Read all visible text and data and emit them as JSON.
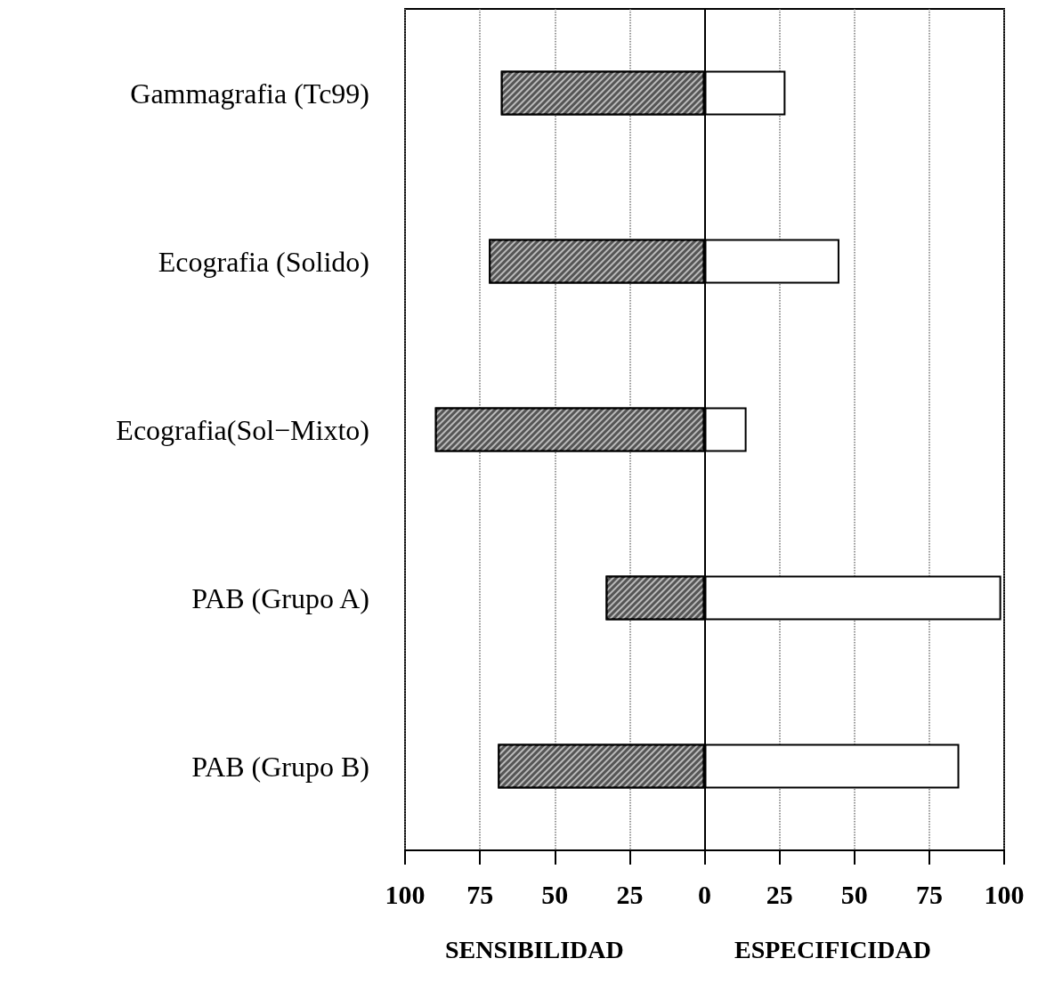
{
  "chart_data": {
    "type": "bar",
    "orientation": "horizontal",
    "stacked": true,
    "categories": [
      "Gammagrafia (Tc99)",
      "Ecografia (Solido)",
      "Ecografia(Sol−Mixto)",
      "PAB (Grupo A)",
      "PAB (Grupo B)"
    ],
    "series": [
      {
        "color": "#555555",
        "values": [
          -68,
          -72,
          -90,
          -33,
          -69
        ]
      },
      {
        "color": "#ffffff",
        "values": [
          27,
          45,
          14,
          99,
          85
        ]
      }
    ],
    "xlim": [
      -100,
      100
    ],
    "xticks": [
      {
        "value": -100,
        "label": "100"
      },
      {
        "value": -75,
        "label": "75"
      },
      {
        "value": -50,
        "label": "50"
      },
      {
        "value": -25,
        "label": "25"
      },
      0,
      25,
      50,
      75,
      100
    ],
    "grid": "x",
    "annotations": [
      "SENSIBILIDAD",
      "ESPECIFICIDAD"
    ]
  }
}
